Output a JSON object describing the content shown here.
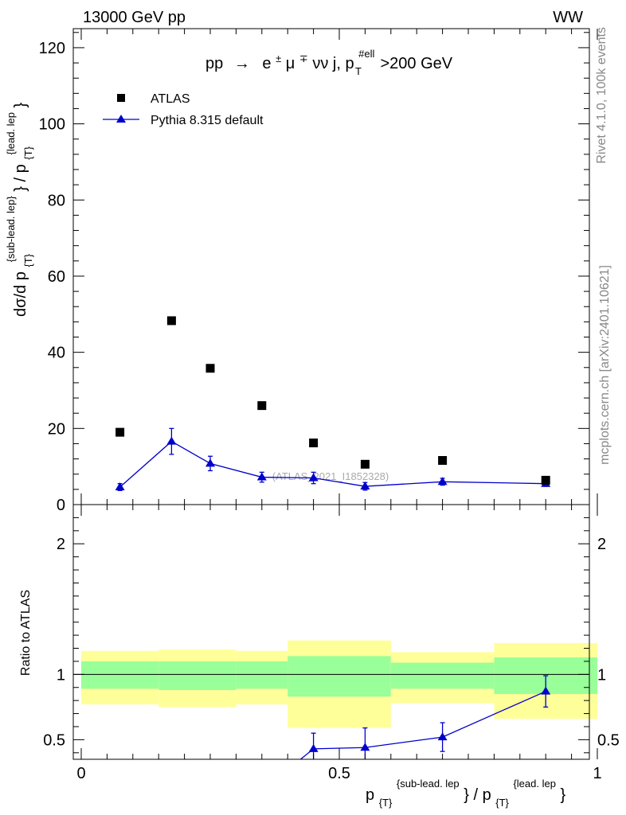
{
  "header": {
    "left": "13000 GeV pp",
    "right": "WW"
  },
  "side_labels": {
    "rivet": "Rivet 4.1.0,  100k events",
    "mcplots": "mcplots.cern.ch [arXiv:2401.10621]"
  },
  "chart_data": [
    {
      "type": "scatter",
      "title_parts": {
        "pp": "pp",
        "arrow": "→",
        "e": "e",
        "pm": "±",
        "mu": "μ",
        "mp": "∓",
        "nunu": "νν j, p",
        "sup": "#ell",
        "sub": "T",
        "tail": ">200 GeV"
      },
      "ylabel_parts": {
        "main": "dσ/d p",
        "sub1": "{T}",
        "sup1": "{sub-lead. lep}",
        "mid": "} / p",
        "sub2": "{T}",
        "sup2": "{lead. lep",
        "end": "}"
      },
      "ylim": [
        0,
        125
      ],
      "xlim": [
        0,
        1
      ],
      "yticks": [
        {
          "value": 0,
          "label": "0"
        },
        {
          "value": 20,
          "label": "20"
        },
        {
          "value": 40,
          "label": "40"
        },
        {
          "value": 60,
          "label": "60"
        },
        {
          "value": 80,
          "label": "80"
        },
        {
          "value": 100,
          "label": "100"
        },
        {
          "value": 120,
          "label": "120"
        }
      ],
      "legend": [
        {
          "name": "ATLAS",
          "marker": "square"
        },
        {
          "name": "Pythia 8.315 default",
          "marker": "triangle"
        }
      ],
      "watermark": "(ATLAS_2021_I1852328)",
      "series": [
        {
          "name": "ATLAS",
          "color": "#000000",
          "x": [
            0.075,
            0.175,
            0.25,
            0.35,
            0.45,
            0.55,
            0.7,
            0.9
          ],
          "values": [
            19.0,
            48.3,
            35.8,
            26.0,
            16.2,
            10.6,
            11.6,
            6.4
          ]
        },
        {
          "name": "Pythia 8.315 default",
          "color": "#0000cc",
          "x": [
            0.075,
            0.175,
            0.25,
            0.35,
            0.45,
            0.55,
            0.7,
            0.9
          ],
          "values": [
            4.6,
            16.6,
            10.8,
            7.2,
            7.0,
            4.8,
            6.0,
            5.5
          ],
          "err": [
            0.9,
            3.4,
            1.9,
            1.3,
            1.5,
            1.0,
            0.9,
            0.7
          ]
        }
      ]
    },
    {
      "type": "line",
      "ylabel": "Ratio to ATLAS",
      "ylim": [
        0.35,
        2.3
      ],
      "xlim": [
        0,
        1
      ],
      "yticks": [
        {
          "value": 0.5,
          "label": "0.5"
        },
        {
          "value": 1,
          "label": "1"
        },
        {
          "value": 2,
          "label": "2"
        }
      ],
      "xticks": [
        {
          "value": 0,
          "label": "0"
        },
        {
          "value": 0.5,
          "label": "0.5"
        },
        {
          "value": 1,
          "label": "1"
        }
      ],
      "xlabel_parts": {
        "p1": "p",
        "sub1": "{T}",
        "sup1": "{sub-lead. lep",
        "mid": "} / p",
        "sub2": "{T}",
        "sup2": "{lead. lep",
        "end": "}"
      },
      "bands": [
        {
          "x0": 0.0,
          "x1": 0.15,
          "yellow": [
            0.77,
            1.18
          ],
          "green": [
            0.89,
            1.1
          ]
        },
        {
          "x0": 0.15,
          "x1": 0.3,
          "yellow": [
            0.75,
            1.19
          ],
          "green": [
            0.88,
            1.1
          ]
        },
        {
          "x0": 0.3,
          "x1": 0.4,
          "yellow": [
            0.77,
            1.18
          ],
          "green": [
            0.89,
            1.1
          ]
        },
        {
          "x0": 0.4,
          "x1": 0.6,
          "yellow": [
            0.59,
            1.26
          ],
          "green": [
            0.83,
            1.14
          ]
        },
        {
          "x0": 0.6,
          "x1": 0.8,
          "yellow": [
            0.78,
            1.17
          ],
          "green": [
            0.89,
            1.09
          ]
        },
        {
          "x0": 0.8,
          "x1": 1.0,
          "yellow": [
            0.66,
            1.24
          ],
          "green": [
            0.85,
            1.13
          ]
        }
      ],
      "series": [
        {
          "name": "Pythia 8.315 default / ATLAS",
          "color": "#0000cc",
          "x": [
            0.425,
            0.45,
            0.55,
            0.7,
            0.9
          ],
          "values": [
            0.35,
            0.43,
            0.44,
            0.52,
            0.87
          ],
          "err": [
            null,
            0.12,
            0.15,
            0.11,
            0.12
          ]
        }
      ]
    }
  ]
}
